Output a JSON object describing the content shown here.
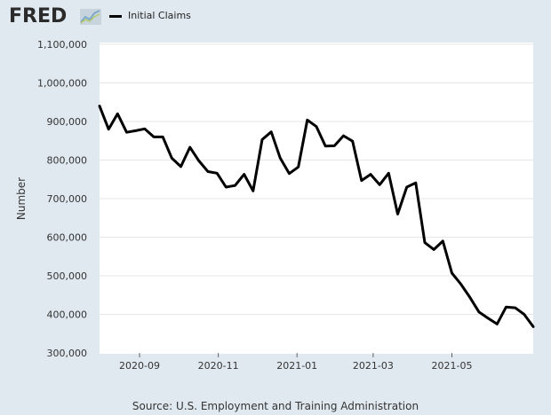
{
  "brand": {
    "logo_text": "FRED",
    "icon": "fred-graph-icon"
  },
  "colors": {
    "background": "#e1e9f0",
    "plot_background": "#ffffff",
    "line": "#000000",
    "grid": "#e6e6e6"
  },
  "source_text": "Source: U.S. Employment and Training Administration",
  "chart_data": {
    "type": "line",
    "title": "",
    "xlabel": "",
    "ylabel": "Number",
    "legend": {
      "placement": "top-left",
      "entries": [
        "Initial Claims"
      ]
    },
    "grid": true,
    "ylim": [
      300000,
      1100000
    ],
    "y_ticks": [
      300000,
      400000,
      500000,
      600000,
      700000,
      800000,
      900000,
      1000000,
      1100000
    ],
    "y_tick_labels": [
      "300,000",
      "400,000",
      "500,000",
      "600,000",
      "700,000",
      "800,000",
      "900,000",
      "1,000,000",
      "1,100,000"
    ],
    "xlim": [
      "2020-08-01",
      "2021-07-03"
    ],
    "x_ticks": [
      "2020-09-01",
      "2020-11-01",
      "2021-01-01",
      "2021-03-01",
      "2021-05-01"
    ],
    "x_tick_labels": [
      "2020-09",
      "2020-11",
      "2021-01",
      "2021-03",
      "2021-05"
    ],
    "series": [
      {
        "name": "Initial Claims",
        "x": [
          "2020-08-01",
          "2020-08-08",
          "2020-08-15",
          "2020-08-22",
          "2020-08-29",
          "2020-09-05",
          "2020-09-12",
          "2020-09-19",
          "2020-09-26",
          "2020-10-03",
          "2020-10-10",
          "2020-10-17",
          "2020-10-24",
          "2020-10-31",
          "2020-11-07",
          "2020-11-14",
          "2020-11-21",
          "2020-11-28",
          "2020-12-05",
          "2020-12-12",
          "2020-12-19",
          "2020-12-26",
          "2021-01-02",
          "2021-01-09",
          "2021-01-16",
          "2021-01-23",
          "2021-01-30",
          "2021-02-06",
          "2021-02-13",
          "2021-02-20",
          "2021-02-27",
          "2021-03-06",
          "2021-03-13",
          "2021-03-20",
          "2021-03-27",
          "2021-04-03",
          "2021-04-10",
          "2021-04-17",
          "2021-04-24",
          "2021-05-01",
          "2021-05-08",
          "2021-05-15",
          "2021-05-22",
          "2021-05-29",
          "2021-06-05",
          "2021-06-12",
          "2021-06-19",
          "2021-06-26",
          "2021-07-03"
        ],
        "values": [
          940000,
          880000,
          920000,
          872000,
          876000,
          881000,
          860000,
          860000,
          805000,
          783000,
          833000,
          798000,
          770000,
          766000,
          730000,
          734000,
          763000,
          720000,
          853000,
          873000,
          805000,
          765000,
          782000,
          904000,
          887000,
          836000,
          837000,
          863000,
          849000,
          747000,
          763000,
          736000,
          766000,
          660000,
          730000,
          741000,
          586000,
          568000,
          590000,
          507000,
          478000,
          444000,
          406000,
          390000,
          375000,
          419000,
          417000,
          400000,
          368000
        ]
      }
    ]
  }
}
